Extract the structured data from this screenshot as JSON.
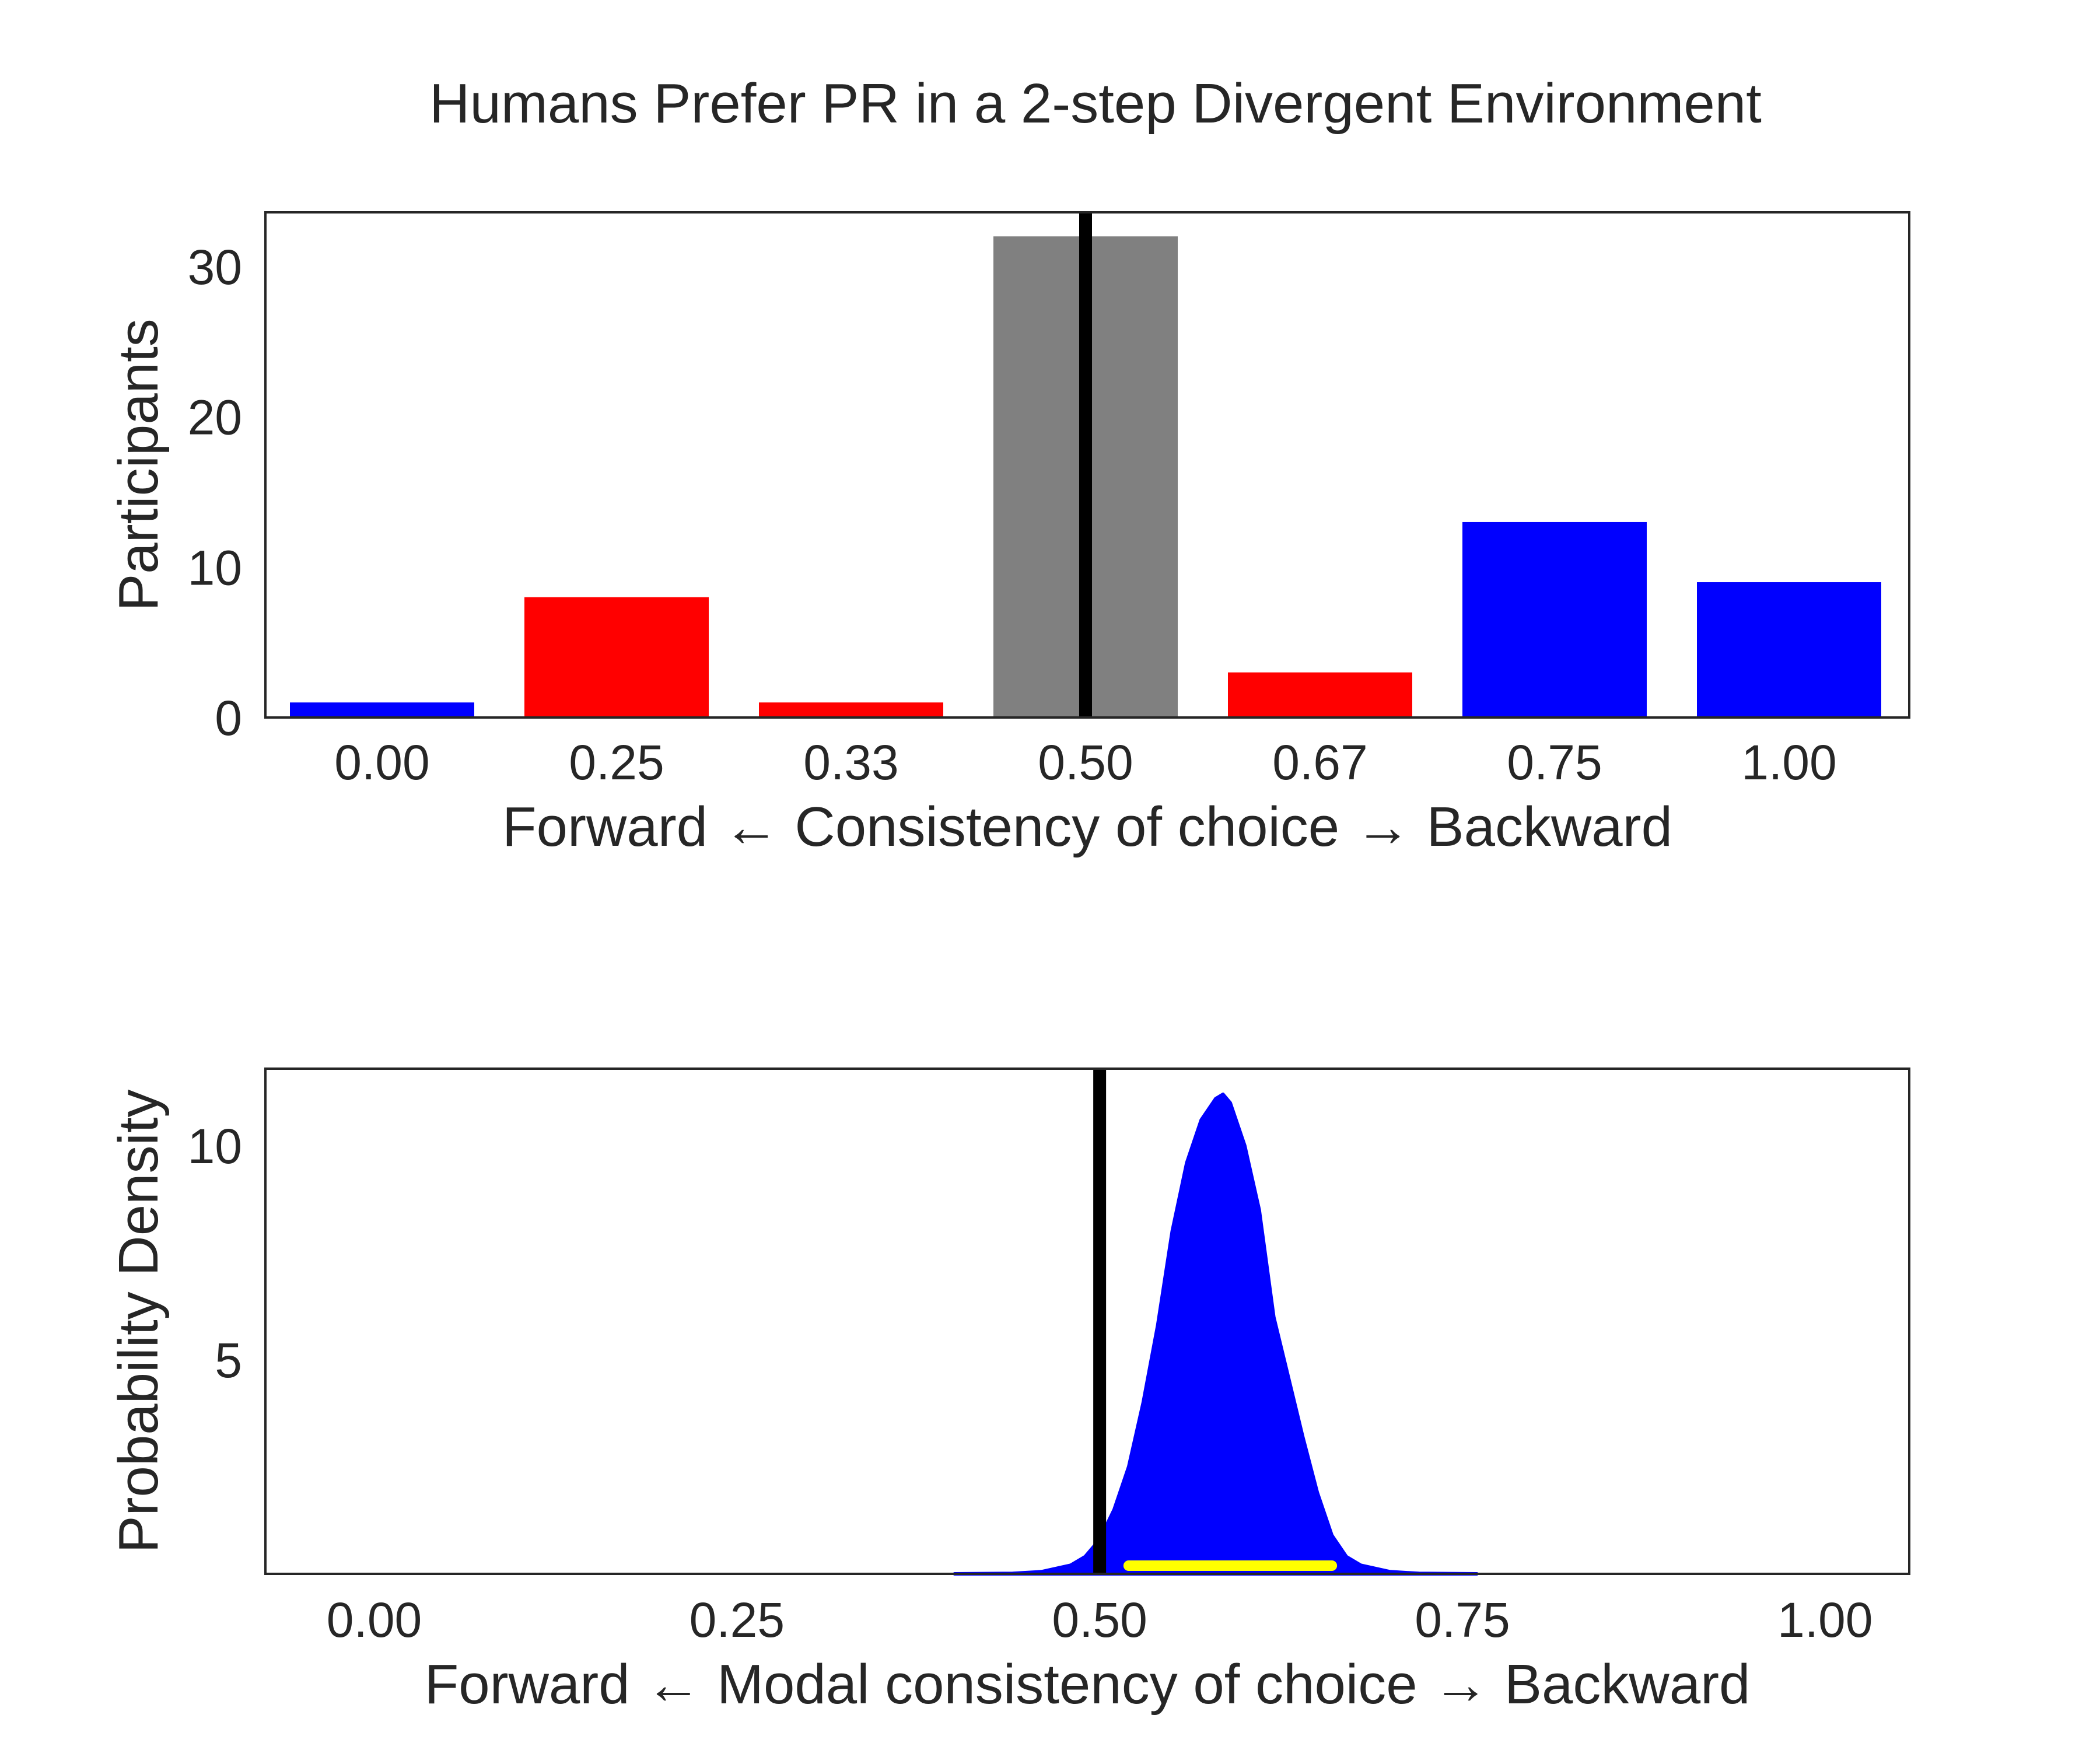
{
  "figure": {
    "title": "Humans Prefer PR in a 2-step Divergent Environment"
  },
  "chart_data": [
    {
      "type": "bar",
      "categories": [
        "0.00",
        "0.25",
        "0.33",
        "0.50",
        "0.67",
        "0.75",
        "1.00"
      ],
      "values": [
        1,
        8,
        1,
        32,
        3,
        13,
        9
      ],
      "bar_colors": [
        "#0000ff",
        "#ff0000",
        "#ff0000",
        "#808080",
        "#ff0000",
        "#0000ff",
        "#0000ff"
      ],
      "xlabel": "Forward ← Consistency of choice → Backward",
      "ylabel": "Participants",
      "ylim": [
        0,
        33.6
      ],
      "yticks": [
        0,
        10,
        20,
        30
      ],
      "reference_line": {
        "category": "0.50",
        "color": "#000000"
      },
      "grid": false
    },
    {
      "type": "area",
      "x": [
        0.4,
        0.44,
        0.46,
        0.48,
        0.49,
        0.5,
        0.51,
        0.52,
        0.53,
        0.54,
        0.55,
        0.56,
        0.57,
        0.58,
        0.585,
        0.59,
        0.6,
        0.61,
        0.62,
        0.63,
        0.64,
        0.65,
        0.66,
        0.67,
        0.68,
        0.7,
        0.72,
        0.76
      ],
      "y": [
        0,
        0.01,
        0.05,
        0.2,
        0.4,
        0.8,
        1.5,
        2.5,
        4.0,
        5.8,
        8.0,
        9.6,
        10.6,
        11.1,
        11.2,
        11.0,
        10.0,
        8.5,
        6.0,
        4.6,
        3.2,
        1.9,
        0.9,
        0.4,
        0.2,
        0.05,
        0.01,
        0
      ],
      "fill_color": "#0000ff",
      "interval": {
        "from": 0.52,
        "to": 0.66,
        "color": "#ffff00"
      },
      "xlabel": "Forward ← Modal consistency of choice → Backward",
      "ylabel": "Probability Density",
      "xlim": [
        -0.075,
        1.058
      ],
      "ylim": [
        0,
        11.8
      ],
      "xticks": [
        "0.00",
        "0.25",
        "0.50",
        "0.75",
        "1.00"
      ],
      "yticks": [
        5,
        10
      ],
      "reference_line": {
        "x": 0.5,
        "color": "#000000"
      },
      "grid": false
    }
  ]
}
